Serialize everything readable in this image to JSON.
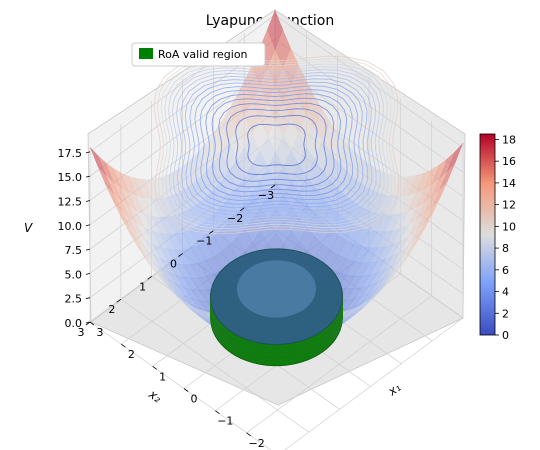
{
  "chart_data": {
    "type": "surface3d",
    "title": "Lyapunov function",
    "xlabel": "x₁",
    "ylabel": "x₂",
    "zlabel": "V",
    "xlim": [
      -3,
      3
    ],
    "ylim": [
      -3,
      3
    ],
    "zlim": [
      0,
      18
    ],
    "x_ticks": [
      "−3",
      "−2",
      "−1",
      "0",
      "1",
      "2",
      "3"
    ],
    "y_ticks": [
      "−3",
      "−2",
      "−1",
      "0",
      "1",
      "2",
      "3"
    ],
    "z_ticks": [
      "0.0",
      "2.5",
      "5.0",
      "7.5",
      "10.0",
      "12.5",
      "15.0",
      "17.5"
    ],
    "legend": {
      "placement": "top-left",
      "entries": [
        {
          "label": "RoA valid region",
          "color": "#008000"
        }
      ]
    },
    "colorbar": {
      "colormap": "coolwarm",
      "min": 0,
      "max": 18,
      "ticks": [
        "0",
        "2",
        "4",
        "6",
        "8",
        "10",
        "12",
        "14",
        "16",
        "18"
      ]
    },
    "surface_formula": "V = x1^2 + x2^2 (approximately quadratic bowl)",
    "roa_region": {
      "shape": "disk",
      "center": [
        0,
        0
      ],
      "radius": 1.5,
      "color": "#008000"
    },
    "contour_projection": {
      "plane": "z = 18",
      "levels": 18
    }
  }
}
